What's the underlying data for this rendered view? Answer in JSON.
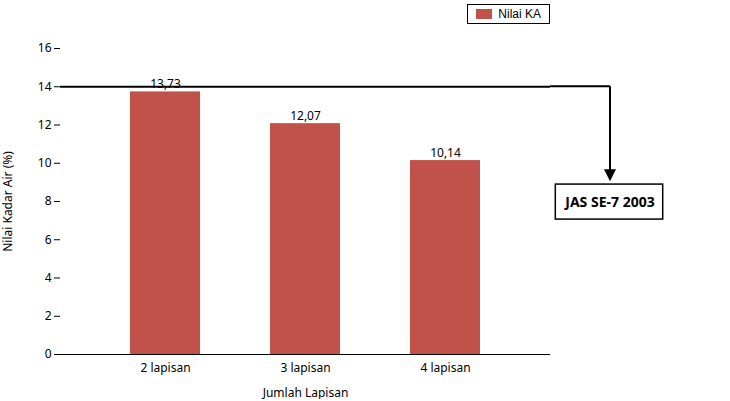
{
  "chart_data": {
    "type": "bar",
    "categories": [
      "2 lapisan",
      "3 lapisan",
      "4 lapisan"
    ],
    "values": [
      13.73,
      12.07,
      10.14
    ],
    "value_labels": [
      "13,73",
      "12,07",
      "10,14"
    ],
    "data_labels": true,
    "color": "#c0524a",
    "xlabel": "Jumlah Lapisan",
    "ylabel": "Nilai Kadar Air (%)",
    "ylim": [
      0,
      16
    ],
    "yticks": [
      0,
      2,
      4,
      6,
      8,
      10,
      12,
      14,
      16
    ],
    "grid": false,
    "legend": "upper right",
    "legend_label": "Nilai KA",
    "reference_lines": [
      {
        "value": 14,
        "label": "JAS SE-7 2003"
      }
    ]
  }
}
